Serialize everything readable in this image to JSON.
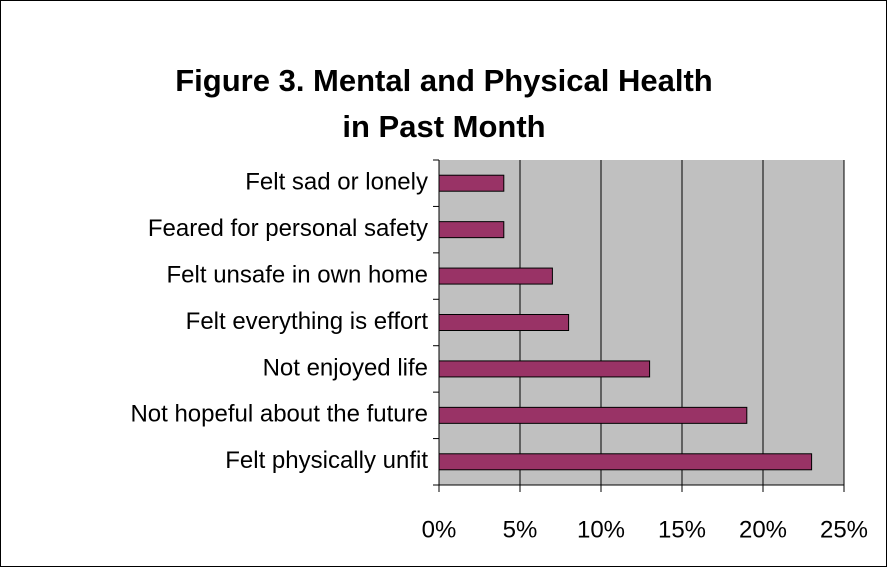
{
  "chart_data": {
    "type": "bar",
    "orientation": "horizontal",
    "title": [
      "Figure 3. Mental and Physical Health",
      "in Past Month"
    ],
    "categories": [
      "Felt sad or lonely",
      "Feared for personal safety",
      "Felt unsafe in own home",
      "Felt everything is effort",
      "Not enjoyed life",
      "Not hopeful about the future",
      "Felt physically unfit"
    ],
    "values": [
      4,
      4,
      7,
      8,
      13,
      19,
      23
    ],
    "color": "#993366",
    "xlim": [
      0,
      25
    ],
    "xticks": [
      {
        "value": 0,
        "label": "0%"
      },
      {
        "value": 5,
        "label": "5%"
      },
      {
        "value": 10,
        "label": "10%"
      },
      {
        "value": 15,
        "label": "15%"
      },
      {
        "value": 20,
        "label": "20%"
      },
      {
        "value": 25,
        "label": "25%"
      }
    ],
    "grid": true
  }
}
